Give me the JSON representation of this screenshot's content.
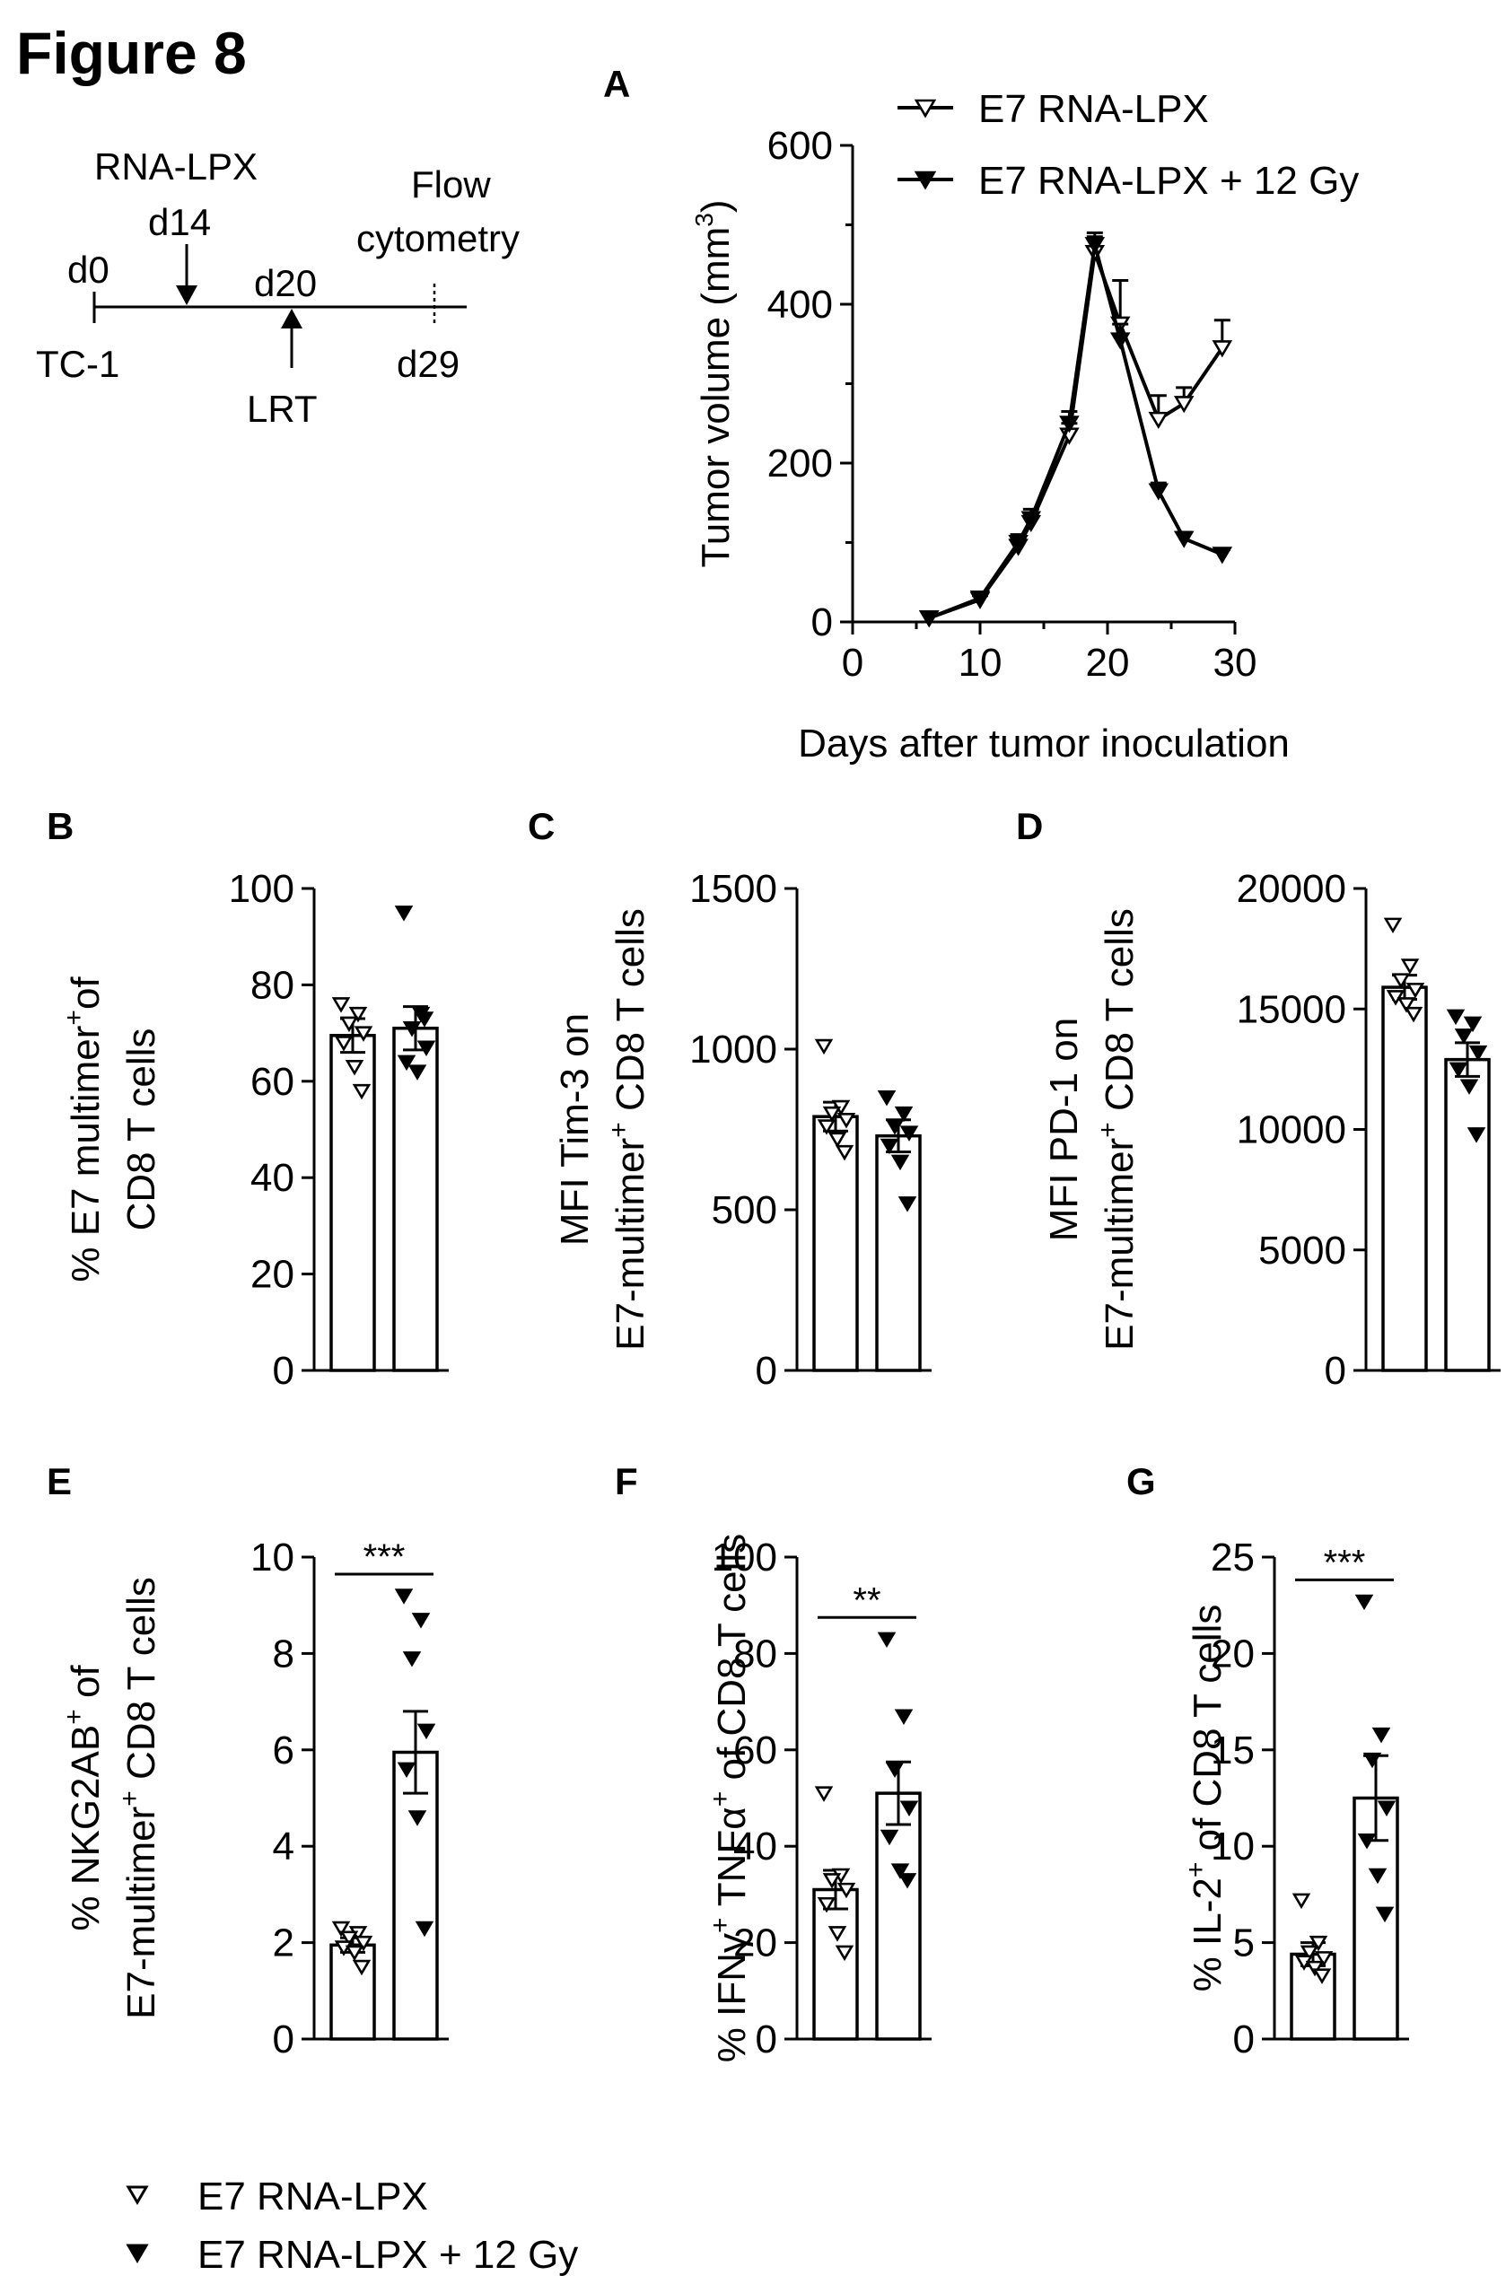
{
  "figure_title": "Figure 8",
  "timeline": {
    "rna_lpx": "RNA-LPX",
    "d14": "d14",
    "d0": "d0",
    "tc1": "TC-1",
    "d20": "d20",
    "lrt": "LRT",
    "flow1": "Flow",
    "flow2": "cytometry",
    "d29": "d29"
  },
  "legend_bottom": [
    "E7 RNA-LPX",
    "E7 RNA-LPX + 12 Gy"
  ],
  "chart_data": [
    {
      "panel": "A",
      "type": "line",
      "xlabel": "Days after tumor inoculation",
      "ylabel": "Tumor volume (mm",
      "ylabel_sup": "3",
      "ylabel_end": ")",
      "xlim": [
        0,
        30
      ],
      "ylim": [
        0,
        600
      ],
      "xticks": [
        0,
        10,
        20,
        30
      ],
      "yticks": [
        0,
        200,
        400,
        600
      ],
      "legend": "top-right",
      "series": [
        {
          "name": "E7 RNA-LPX",
          "marker": "open-down-triangle",
          "x": [
            6,
            10,
            13,
            14,
            17,
            19,
            21,
            24,
            26,
            29
          ],
          "y": [
            5,
            28,
            95,
            125,
            235,
            465,
            375,
            255,
            275,
            345
          ],
          "err": [
            0,
            5,
            10,
            12,
            15,
            20,
            55,
            30,
            20,
            35
          ]
        },
        {
          "name": "E7 RNA-LPX + 12 Gy",
          "marker": "filled-down-triangle",
          "x": [
            6,
            10,
            13,
            14,
            17,
            19,
            21,
            24,
            26,
            29
          ],
          "y": [
            5,
            30,
            100,
            130,
            250,
            475,
            355,
            165,
            105,
            85
          ],
          "err": [
            0,
            5,
            10,
            12,
            15,
            15,
            20,
            10,
            8,
            6
          ]
        }
      ]
    },
    {
      "panel": "B",
      "type": "bar",
      "ylabel_lines": [
        [
          "% E7 multimer",
          "+",
          "of"
        ],
        [
          "CD8  T cells"
        ]
      ],
      "ylim": [
        0,
        100
      ],
      "yticks": [
        0,
        20,
        40,
        60,
        80,
        100
      ],
      "groups": [
        {
          "name": "E7 RNA-LPX",
          "mean": 69.5,
          "sem": 3.5,
          "points": [
            76,
            74,
            72,
            70,
            68,
            63,
            58
          ]
        },
        {
          "name": "E7 RNA-LPX + 12 Gy",
          "mean": 71,
          "sem": 4.5,
          "points": [
            95,
            74,
            71,
            67,
            64,
            62,
            73
          ]
        }
      ]
    },
    {
      "panel": "C",
      "type": "bar",
      "ylabel_lines": [
        [
          "MFI Tim-3 on"
        ],
        [
          "E7-multimer",
          "+",
          " CD8 T cells"
        ]
      ],
      "ylim": [
        0,
        1500
      ],
      "yticks": [
        0,
        500,
        1000,
        1500
      ],
      "groups": [
        {
          "name": "E7 RNA-LPX",
          "mean": 790,
          "sem": 45,
          "points": [
            1010,
            820,
            800,
            780,
            760,
            720,
            680
          ]
        },
        {
          "name": "E7 RNA-LPX + 12 Gy",
          "mean": 730,
          "sem": 50,
          "points": [
            850,
            800,
            760,
            740,
            700,
            650,
            520
          ]
        }
      ]
    },
    {
      "panel": "D",
      "type": "bar",
      "ylabel_lines": [
        [
          "MFI PD-1 on"
        ],
        [
          "E7-multimer",
          "+",
          " CD8 T cells"
        ]
      ],
      "ylim": [
        0,
        20000
      ],
      "yticks": [
        0,
        5000,
        10000,
        15000,
        20000
      ],
      "groups": [
        {
          "name": "E7 RNA-LPX",
          "mean": 15900,
          "sem": 500,
          "points": [
            18500,
            16800,
            16200,
            15800,
            15500,
            15200,
            14800
          ]
        },
        {
          "name": "E7 RNA-LPX + 12 Gy",
          "mean": 12900,
          "sem": 700,
          "points": [
            14700,
            14400,
            13900,
            13200,
            12500,
            11800,
            9800
          ]
        }
      ]
    },
    {
      "panel": "E",
      "type": "bar",
      "ylabel_lines": [
        [
          "% NKG2AB",
          "+",
          " of"
        ],
        [
          "E7-multimer",
          "+",
          " CD8 T cells"
        ]
      ],
      "ylim": [
        0,
        10
      ],
      "yticks": [
        0,
        2,
        4,
        6,
        8,
        10
      ],
      "significance": "***",
      "groups": [
        {
          "name": "E7 RNA-LPX",
          "mean": 1.95,
          "sem": 0.15,
          "points": [
            2.3,
            2.2,
            2.1,
            2.0,
            1.9,
            1.8,
            1.5
          ]
        },
        {
          "name": "E7 RNA-LPX + 12 Gy",
          "mean": 5.95,
          "sem": 0.85,
          "points": [
            9.2,
            8.7,
            7.9,
            6.4,
            5.6,
            4.6,
            2.3
          ]
        }
      ]
    },
    {
      "panel": "F",
      "type": "bar",
      "ylabel_lines": [
        [
          "% IFNγ",
          "+",
          " TNFα",
          "+",
          " of CD8 T cells"
        ]
      ],
      "ylim": [
        0,
        100
      ],
      "yticks": [
        0,
        20,
        40,
        60,
        80,
        100
      ],
      "significance": "**",
      "groups": [
        {
          "name": "E7 RNA-LPX",
          "mean": 31,
          "sem": 4,
          "points": [
            51,
            34,
            33,
            31,
            28,
            22,
            18
          ]
        },
        {
          "name": "E7 RNA-LPX + 12 Gy",
          "mean": 51,
          "sem": 6.5,
          "points": [
            83,
            67,
            56,
            48,
            42,
            35,
            33
          ]
        }
      ]
    },
    {
      "panel": "G",
      "type": "bar",
      "ylabel_lines": [
        [
          "% IL-2",
          "+",
          " of CD8  T cells"
        ]
      ],
      "ylim": [
        0,
        25
      ],
      "yticks": [
        0,
        5,
        10,
        15,
        20,
        25
      ],
      "significance": "***",
      "groups": [
        {
          "name": "E7 RNA-LPX",
          "mean": 4.4,
          "sem": 0.6,
          "points": [
            7.2,
            5.0,
            4.5,
            4.2,
            4.0,
            3.7,
            3.3
          ]
        },
        {
          "name": "E7 RNA-LPX + 12 Gy",
          "mean": 12.5,
          "sem": 2.2,
          "points": [
            22.7,
            15.8,
            14.5,
            12.0,
            10.3,
            8.5,
            6.5
          ]
        }
      ]
    }
  ]
}
